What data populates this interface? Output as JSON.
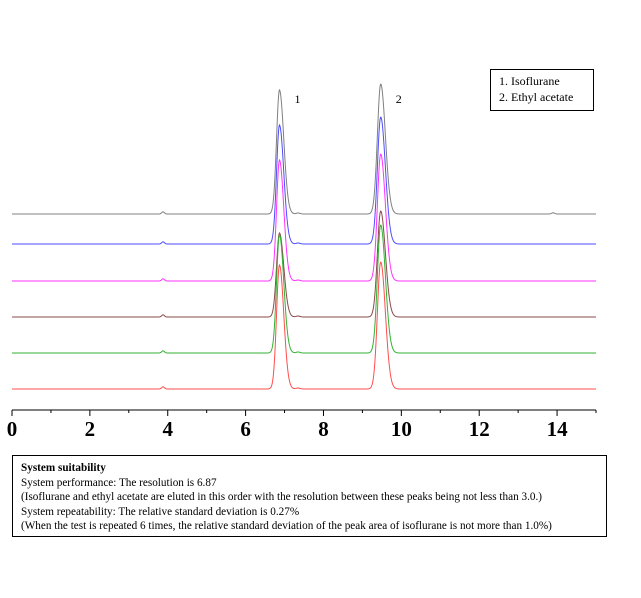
{
  "chart_data": {
    "type": "line",
    "xlim": [
      0,
      15
    ],
    "x_ticks": [
      "0",
      "2",
      "4",
      "6",
      "8",
      "10",
      "12",
      "14"
    ],
    "peaks": [
      {
        "label": "1",
        "rt": 6.87
      },
      {
        "label": "2",
        "rt": 9.47
      }
    ],
    "series": [
      {
        "color": "#808080"
      },
      {
        "color": "#4d4dff"
      },
      {
        "color": "#ff33ff"
      },
      {
        "color": "#8b4a4a"
      },
      {
        "color": "#33b233"
      },
      {
        "color": "#ff4d4d"
      }
    ],
    "legend": {
      "position": "top-right",
      "items": [
        "1. Isoflurane",
        "2. Ethyl acetate"
      ]
    }
  },
  "suitability": {
    "title": "System suitability",
    "lines": [
      "System performance: The resolution is 6.87",
      "(Isoflurane and ethyl acetate are eluted in this order with the resolution between these peaks being not less than 3.0.)",
      "System repeatability: The relative standard deviation is 0.27%",
      "(When the test is repeated 6 times, the relative standard deviation of the peak area of isoflurane is not more than 1.0%)"
    ]
  }
}
